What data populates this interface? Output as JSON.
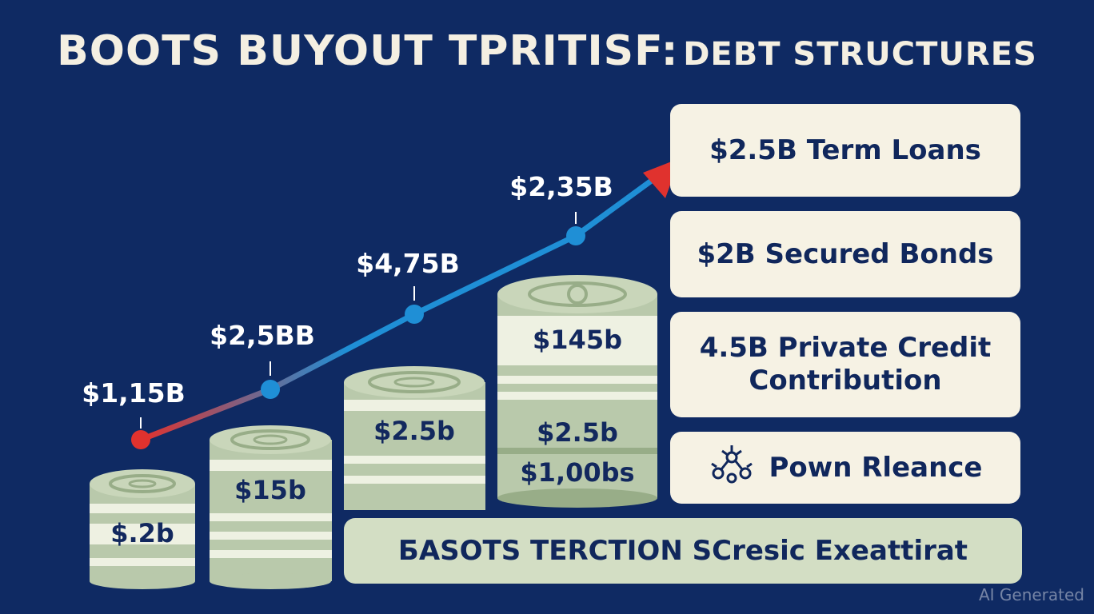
{
  "title": {
    "main": "BOOTS BUYOUT TPRITISF:",
    "sub": "DEBT STRUCTURES"
  },
  "trend_points": [
    {
      "label": "$1,15B"
    },
    {
      "label": "$2,5BB"
    },
    {
      "label": "$4,75B"
    },
    {
      "label": "$2,35B"
    }
  ],
  "stacks": [
    {
      "labels": [
        "$.2b"
      ]
    },
    {
      "labels": [
        "$15b"
      ]
    },
    {
      "labels": [
        "$2.5b"
      ]
    },
    {
      "labels": [
        "$145b",
        "$2.5b",
        "$1,00bs"
      ]
    }
  ],
  "cards": [
    {
      "text": "$2.5B Term Loans"
    },
    {
      "text": "$2B Secured Bonds"
    },
    {
      "text": "4.5B Private Credit Contribution"
    },
    {
      "text": "Pown Rleance",
      "icon": "network-key-icon"
    }
  ],
  "banner": {
    "text": "БASOTS TERCTION SCresic Exeattirat"
  },
  "watermark": "AI Generated",
  "colors": {
    "background": "#0f2a63",
    "card": "#f6f2e4",
    "banner": "#d3dec4",
    "line_blue": "#1f8fd6",
    "line_red": "#e0322e",
    "stack_green": "#b9c9ab",
    "stack_light": "#eef1e2"
  }
}
